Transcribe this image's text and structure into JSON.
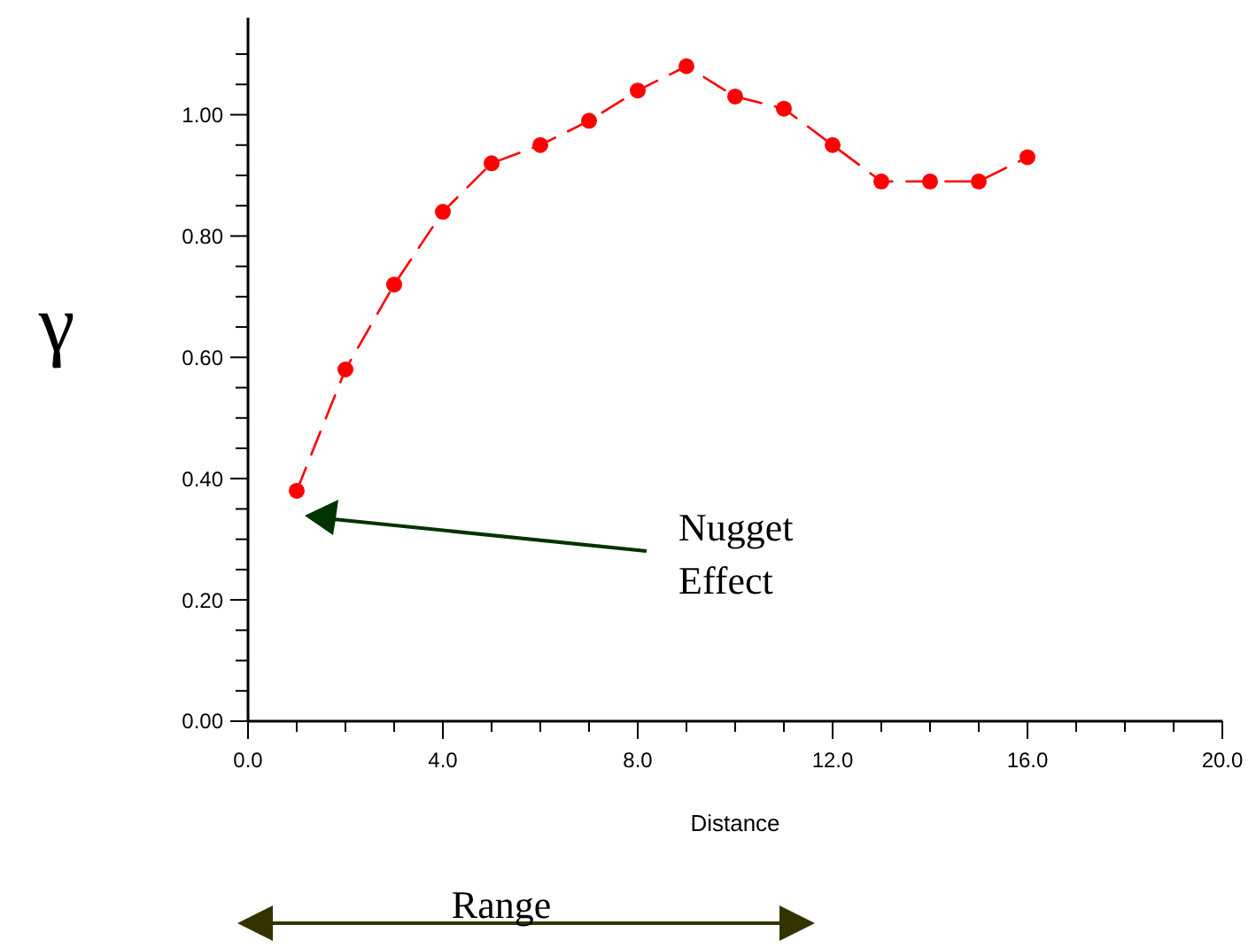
{
  "chart_data": {
    "type": "line",
    "xlabel": "Distance",
    "ylabel": "γ",
    "x": [
      1,
      2,
      3,
      4,
      5,
      6,
      7,
      8,
      9,
      10,
      11,
      12,
      13,
      14,
      15,
      16
    ],
    "series": [
      {
        "color": "#ff0000",
        "values": [
          0.38,
          0.58,
          0.72,
          0.84,
          0.92,
          0.95,
          0.99,
          1.04,
          1.08,
          1.03,
          1.01,
          0.95,
          0.89,
          0.89,
          0.89,
          0.93
        ]
      }
    ],
    "xlim": [
      0,
      20
    ],
    "xticks": [
      {
        "value": 0,
        "label": "0.0"
      },
      {
        "value": 1,
        "label": null
      },
      {
        "value": 2,
        "label": null
      },
      {
        "value": 3,
        "label": null
      },
      {
        "value": 4,
        "label": "4.0"
      },
      {
        "value": 5,
        "label": null
      },
      {
        "value": 6,
        "label": null
      },
      {
        "value": 7,
        "label": null
      },
      {
        "value": 8,
        "label": "8.0"
      },
      {
        "value": 9,
        "label": null
      },
      {
        "value": 10,
        "label": null
      },
      {
        "value": 11,
        "label": null
      },
      {
        "value": 12,
        "label": "12.0"
      },
      {
        "value": 13,
        "label": null
      },
      {
        "value": 14,
        "label": null
      },
      {
        "value": 15,
        "label": null
      },
      {
        "value": 16,
        "label": "16.0"
      },
      {
        "value": 17,
        "label": null
      },
      {
        "value": 18,
        "label": null
      },
      {
        "value": 19,
        "label": null
      },
      {
        "value": 20,
        "label": "20.0"
      }
    ],
    "ylim": [
      0,
      1.16
    ],
    "yticks": [
      {
        "value": 0,
        "label": "0.00"
      },
      {
        "value": 0.05,
        "label": null
      },
      {
        "value": 0.1,
        "label": null
      },
      {
        "value": 0.15,
        "label": null
      },
      {
        "value": 0.2,
        "label": "0.20"
      },
      {
        "value": 0.25,
        "label": null
      },
      {
        "value": 0.3,
        "label": null
      },
      {
        "value": 0.35,
        "label": null
      },
      {
        "value": 0.4,
        "label": "0.40"
      },
      {
        "value": 0.45,
        "label": null
      },
      {
        "value": 0.5,
        "label": null
      },
      {
        "value": 0.55,
        "label": null
      },
      {
        "value": 0.6,
        "label": "0.60"
      },
      {
        "value": 0.65,
        "label": null
      },
      {
        "value": 0.7,
        "label": null
      },
      {
        "value": 0.75,
        "label": null
      },
      {
        "value": 0.8,
        "label": "0.80"
      },
      {
        "value": 0.85,
        "label": null
      },
      {
        "value": 0.9,
        "label": null
      },
      {
        "value": 0.95,
        "label": null
      },
      {
        "value": 1.0,
        "label": "1.00"
      },
      {
        "value": 1.05,
        "label": null
      },
      {
        "value": 1.1,
        "label": null
      }
    ],
    "annotations": [
      "Nugget Effect",
      "Range"
    ],
    "marker": "circle",
    "line_style": "dashed",
    "grid": false
  }
}
